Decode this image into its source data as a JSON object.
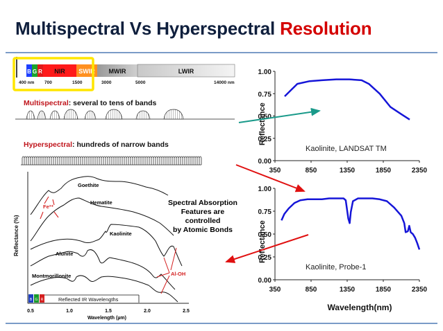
{
  "title": {
    "main": "Multispectral Vs Hyperspectral",
    "accent": "Resolution"
  },
  "colors": {
    "title": "#0f1f3d",
    "accent": "#d40000",
    "curve": "#1515d8",
    "teal_arrow": "#1a9a8a",
    "red_arrow": "#e01010",
    "highlight": "#ffe600"
  },
  "spectrum_bar": {
    "segments": [
      "B",
      "G",
      "R",
      "NIR",
      "SWIR",
      "MWIR",
      "LWIR"
    ],
    "ticks": [
      "400 nm",
      "700",
      "1500",
      "3000",
      "5000",
      "14000 nm"
    ]
  },
  "multispectral": {
    "label_bold": "Multispectral",
    "label_rest": ": several to tens of bands"
  },
  "hyperspectral": {
    "label_bold": "Hyperspectral",
    "label_rest": ": hundreds of narrow bands"
  },
  "mineral_plot": {
    "ylabel": "Reflectance (%)",
    "xlabel": "Wavelength (µm)",
    "xticks": [
      "0.5",
      "1.0",
      "1.5",
      "2.0",
      "2.5"
    ],
    "curves": [
      "Goethite",
      "Hematite",
      "Kaolinite",
      "Alunite",
      "Montmorillonite"
    ],
    "fe_label": "Fe³⁺",
    "aloh_label": "Al-OH",
    "legend_bands": [
      "B",
      "G",
      "R"
    ],
    "legend_text": "Reflected IR Wavelengths",
    "note_lines": [
      "Spectral Absorption",
      "Features are",
      "controlled",
      "by Atomic Bonds"
    ]
  },
  "chart_data": [
    {
      "type": "line",
      "title": "Kaolinite, LANDSAT TM",
      "xlabel": "",
      "ylabel": "Reflectance",
      "xlim": [
        350,
        2350
      ],
      "ylim": [
        0,
        1.0
      ],
      "xticks": [
        "350",
        "850",
        "1350",
        "1850",
        "2350"
      ],
      "yticks": [
        "0.00",
        "0.25",
        "0.50",
        "0.75",
        "1.00"
      ],
      "series": [
        {
          "values": [
            [
              485,
              0.72
            ],
            [
              560,
              0.78
            ],
            [
              660,
              0.86
            ],
            [
              830,
              0.89
            ],
            [
              1000,
              0.9
            ],
            [
              1200,
              0.91
            ],
            [
              1380,
              0.91
            ],
            [
              1550,
              0.9
            ],
            [
              1650,
              0.86
            ],
            [
              1800,
              0.75
            ],
            [
              1950,
              0.6
            ],
            [
              2100,
              0.52
            ],
            [
              2215,
              0.46
            ]
          ]
        }
      ]
    },
    {
      "type": "line",
      "title": "Kaolinite, Probe-1",
      "xlabel": "Wavelength(nm)",
      "ylabel": "Reflectance",
      "xlim": [
        350,
        2350
      ],
      "ylim": [
        0,
        1.0
      ],
      "xticks": [
        "350",
        "850",
        "1350",
        "1850",
        "2350"
      ],
      "yticks": [
        "0.00",
        "0.25",
        "0.50",
        "0.75",
        "1.00"
      ],
      "series": [
        {
          "values": [
            [
              440,
              0.65
            ],
            [
              480,
              0.72
            ],
            [
              540,
              0.78
            ],
            [
              620,
              0.84
            ],
            [
              700,
              0.87
            ],
            [
              800,
              0.88
            ],
            [
              900,
              0.88
            ],
            [
              1000,
              0.88
            ],
            [
              1100,
              0.89
            ],
            [
              1200,
              0.89
            ],
            [
              1300,
              0.89
            ],
            [
              1330,
              0.87
            ],
            [
              1365,
              0.67
            ],
            [
              1385,
              0.62
            ],
            [
              1400,
              0.74
            ],
            [
              1430,
              0.86
            ],
            [
              1500,
              0.89
            ],
            [
              1600,
              0.89
            ],
            [
              1700,
              0.89
            ],
            [
              1800,
              0.88
            ],
            [
              1900,
              0.86
            ],
            [
              2000,
              0.79
            ],
            [
              2100,
              0.7
            ],
            [
              2140,
              0.62
            ],
            [
              2160,
              0.52
            ],
            [
              2190,
              0.53
            ],
            [
              2210,
              0.59
            ],
            [
              2230,
              0.52
            ],
            [
              2260,
              0.5
            ],
            [
              2290,
              0.46
            ],
            [
              2320,
              0.4
            ],
            [
              2350,
              0.33
            ]
          ]
        }
      ]
    }
  ]
}
